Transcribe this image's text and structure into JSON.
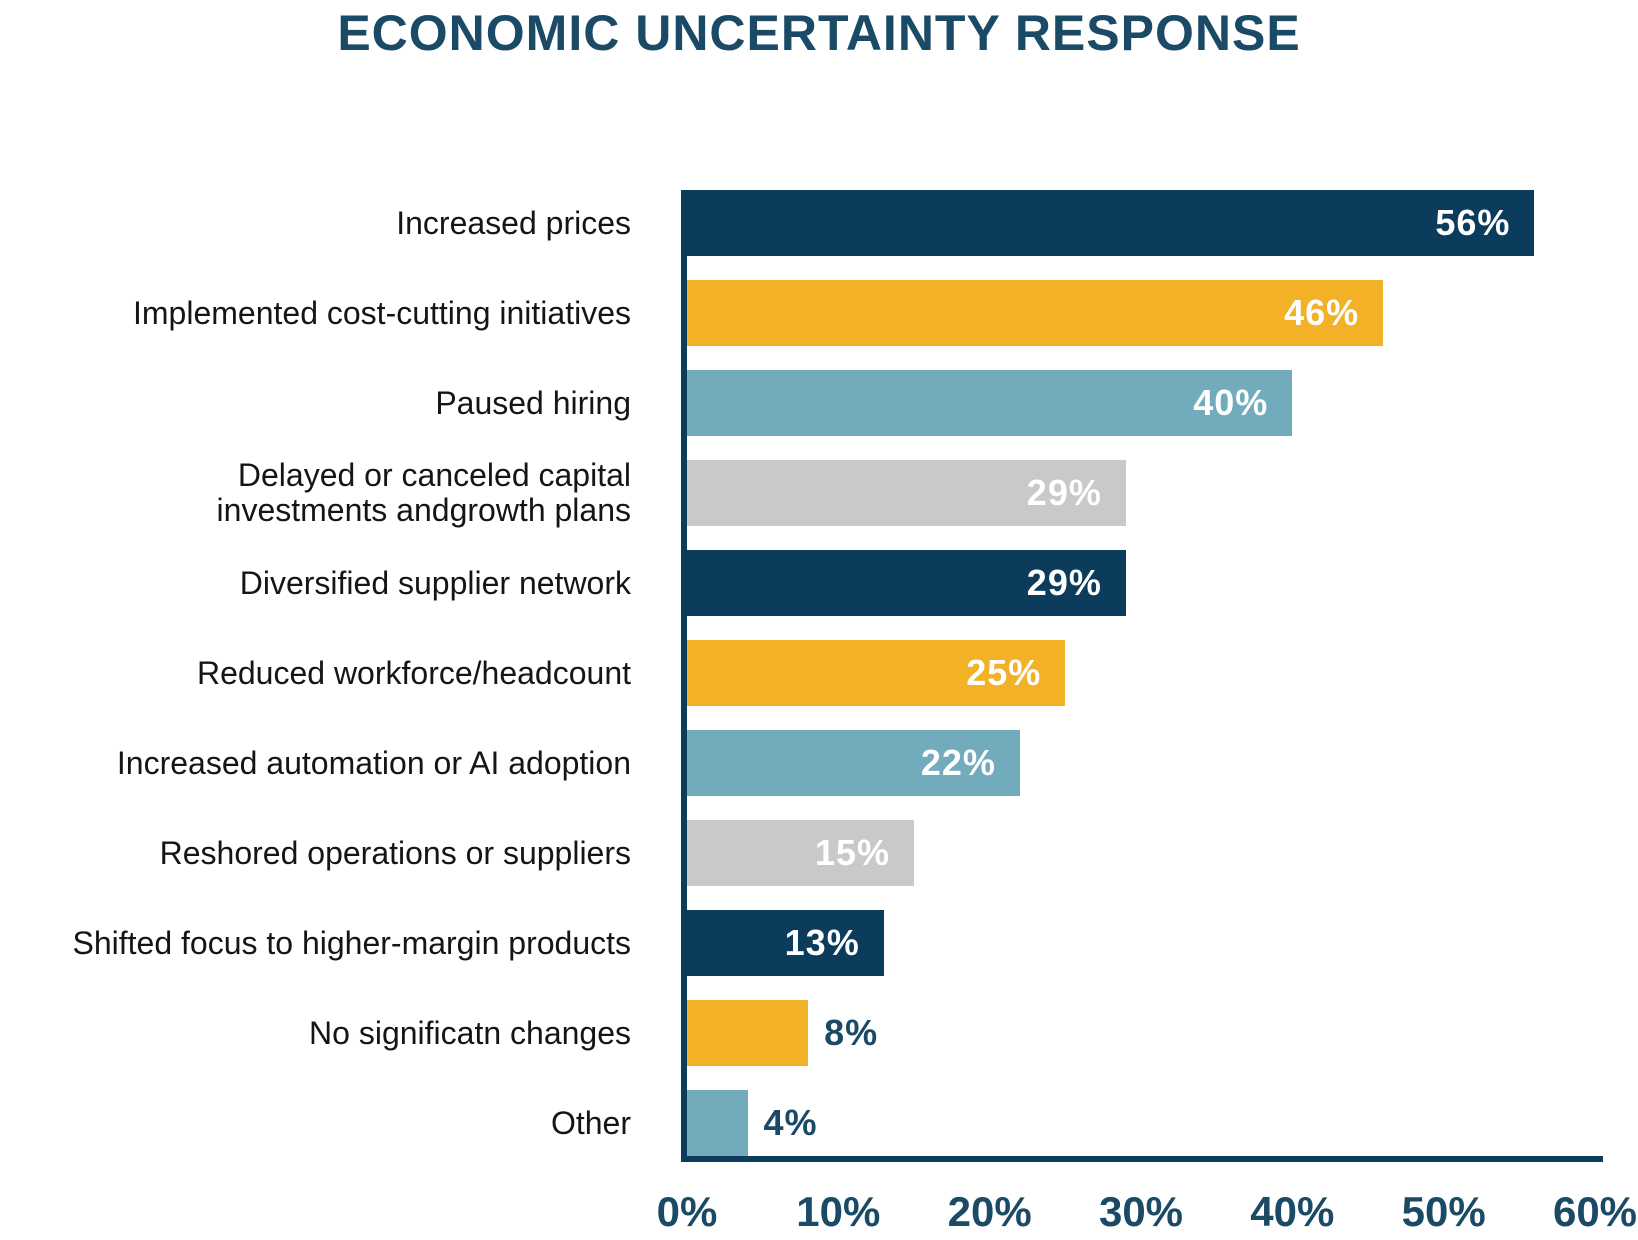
{
  "title": {
    "regular": "ECONOMIC UNCERTAINTY",
    "bold": "RESPONSE"
  },
  "colors": {
    "navy": "#0b3c5c",
    "amber": "#f2b127",
    "teal": "#72acbc",
    "gray": "#c8c9ca",
    "ink": "#1a4a66",
    "value_text_inside": "#ffffff",
    "label_text": "#151515"
  },
  "chart_data": {
    "type": "bar",
    "orientation": "horizontal",
    "title": "ECONOMIC UNCERTAINTY RESPONSE",
    "xlabel": "",
    "ylabel": "",
    "xlim": [
      0,
      60
    ],
    "x_ticks": [
      "0%",
      "10%",
      "20%",
      "30%",
      "40%",
      "50%",
      "60%"
    ],
    "grid": false,
    "legend": false,
    "categories": [
      "Increased prices",
      "Implemented cost-cutting initiatives",
      "Paused hiring",
      "Delayed or canceled capital\ninvestments andgrowth plans",
      "Diversified supplier network",
      "Reduced workforce/headcount",
      "Increased automation or AI adoption",
      "Reshored operations or suppliers",
      "Shifted focus to higher-margin products",
      "No significatn changes",
      "Other"
    ],
    "values": [
      56,
      46,
      40,
      29,
      29,
      25,
      22,
      15,
      13,
      8,
      4
    ],
    "value_labels": [
      "56%",
      "46%",
      "40%",
      "29%",
      "29%",
      "25%",
      "22%",
      "15%",
      "13%",
      "8%",
      "4%"
    ],
    "bar_colors": [
      "navy",
      "amber",
      "teal",
      "gray",
      "navy",
      "amber",
      "teal",
      "gray",
      "navy",
      "amber",
      "teal"
    ],
    "value_label_placement": [
      "inside",
      "inside",
      "inside",
      "inside",
      "inside",
      "inside",
      "inside",
      "inside",
      "inside",
      "outside",
      "outside"
    ]
  }
}
